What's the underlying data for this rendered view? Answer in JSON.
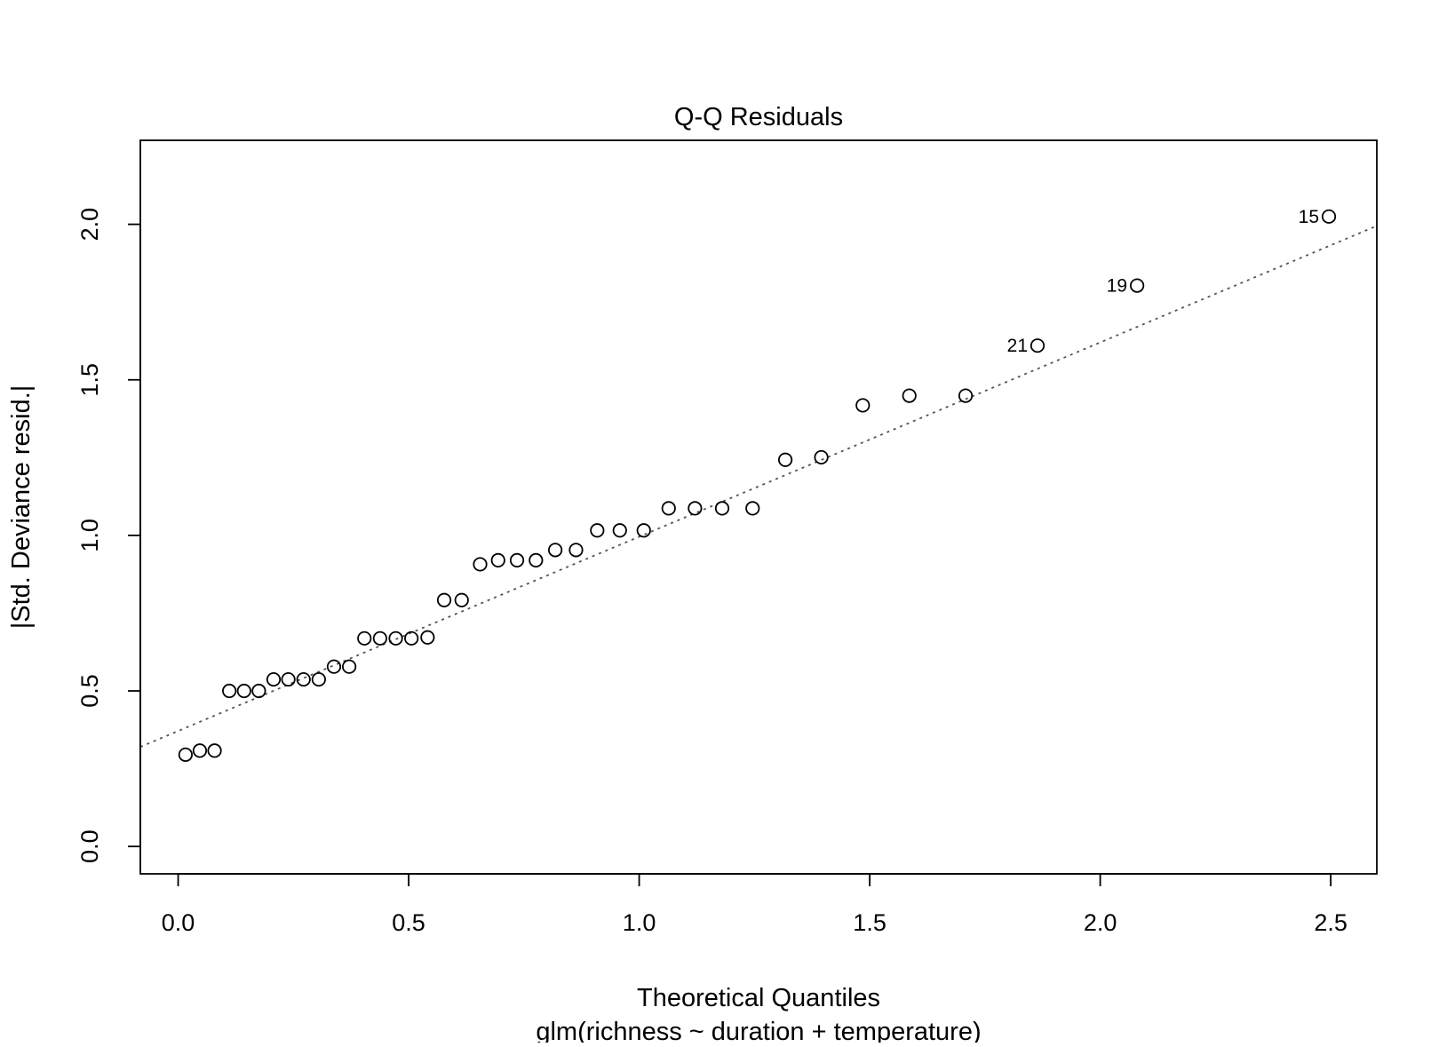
{
  "chart_data": {
    "type": "scatter",
    "title": "Q-Q Residuals",
    "xlabel": "Theoretical Quantiles",
    "subtitle": "glm(richness ~ duration + temperature)",
    "ylabel": "|Std. Deviance resid.|",
    "xlim": [
      -0.082,
      2.6
    ],
    "ylim": [
      -0.088,
      2.27
    ],
    "x_ticks": [
      0.0,
      0.5,
      1.0,
      1.5,
      2.0,
      2.5
    ],
    "x_tick_labels": [
      "0.0",
      "0.5",
      "1.0",
      "1.5",
      "2.0",
      "2.5"
    ],
    "y_ticks": [
      0.0,
      0.5,
      1.0,
      1.5,
      2.0
    ],
    "y_tick_labels": [
      "0.0",
      "0.5",
      "1.0",
      "1.5",
      "2.0"
    ],
    "grid": false,
    "colors": {
      "points": "#000000",
      "reference_line": "#555555"
    },
    "reference_line": {
      "x": [
        -0.082,
        2.6
      ],
      "y": [
        0.32,
        1.995
      ],
      "style": "dotted"
    },
    "points": [
      {
        "x": 0.016,
        "y": 0.295
      },
      {
        "x": 0.047,
        "y": 0.308
      },
      {
        "x": 0.079,
        "y": 0.308
      },
      {
        "x": 0.111,
        "y": 0.5
      },
      {
        "x": 0.143,
        "y": 0.5
      },
      {
        "x": 0.175,
        "y": 0.5
      },
      {
        "x": 0.207,
        "y": 0.537
      },
      {
        "x": 0.239,
        "y": 0.537
      },
      {
        "x": 0.272,
        "y": 0.537
      },
      {
        "x": 0.305,
        "y": 0.537
      },
      {
        "x": 0.338,
        "y": 0.578
      },
      {
        "x": 0.371,
        "y": 0.578
      },
      {
        "x": 0.404,
        "y": 0.669
      },
      {
        "x": 0.438,
        "y": 0.669
      },
      {
        "x": 0.472,
        "y": 0.669
      },
      {
        "x": 0.506,
        "y": 0.669
      },
      {
        "x": 0.541,
        "y": 0.672
      },
      {
        "x": 0.577,
        "y": 0.792
      },
      {
        "x": 0.615,
        "y": 0.792
      },
      {
        "x": 0.655,
        "y": 0.907
      },
      {
        "x": 0.694,
        "y": 0.92
      },
      {
        "x": 0.735,
        "y": 0.92
      },
      {
        "x": 0.776,
        "y": 0.92
      },
      {
        "x": 0.818,
        "y": 0.953
      },
      {
        "x": 0.863,
        "y": 0.953
      },
      {
        "x": 0.909,
        "y": 1.016
      },
      {
        "x": 0.958,
        "y": 1.016
      },
      {
        "x": 1.01,
        "y": 1.016
      },
      {
        "x": 1.064,
        "y": 1.087
      },
      {
        "x": 1.121,
        "y": 1.087
      },
      {
        "x": 1.18,
        "y": 1.087
      },
      {
        "x": 1.246,
        "y": 1.087
      },
      {
        "x": 1.317,
        "y": 1.243
      },
      {
        "x": 1.395,
        "y": 1.251
      },
      {
        "x": 1.485,
        "y": 1.418
      },
      {
        "x": 1.586,
        "y": 1.449
      },
      {
        "x": 1.708,
        "y": 1.449
      },
      {
        "x": 1.864,
        "y": 1.61,
        "label": "21"
      },
      {
        "x": 2.08,
        "y": 1.803,
        "label": "19"
      },
      {
        "x": 2.496,
        "y": 2.025,
        "label": "15"
      }
    ]
  }
}
